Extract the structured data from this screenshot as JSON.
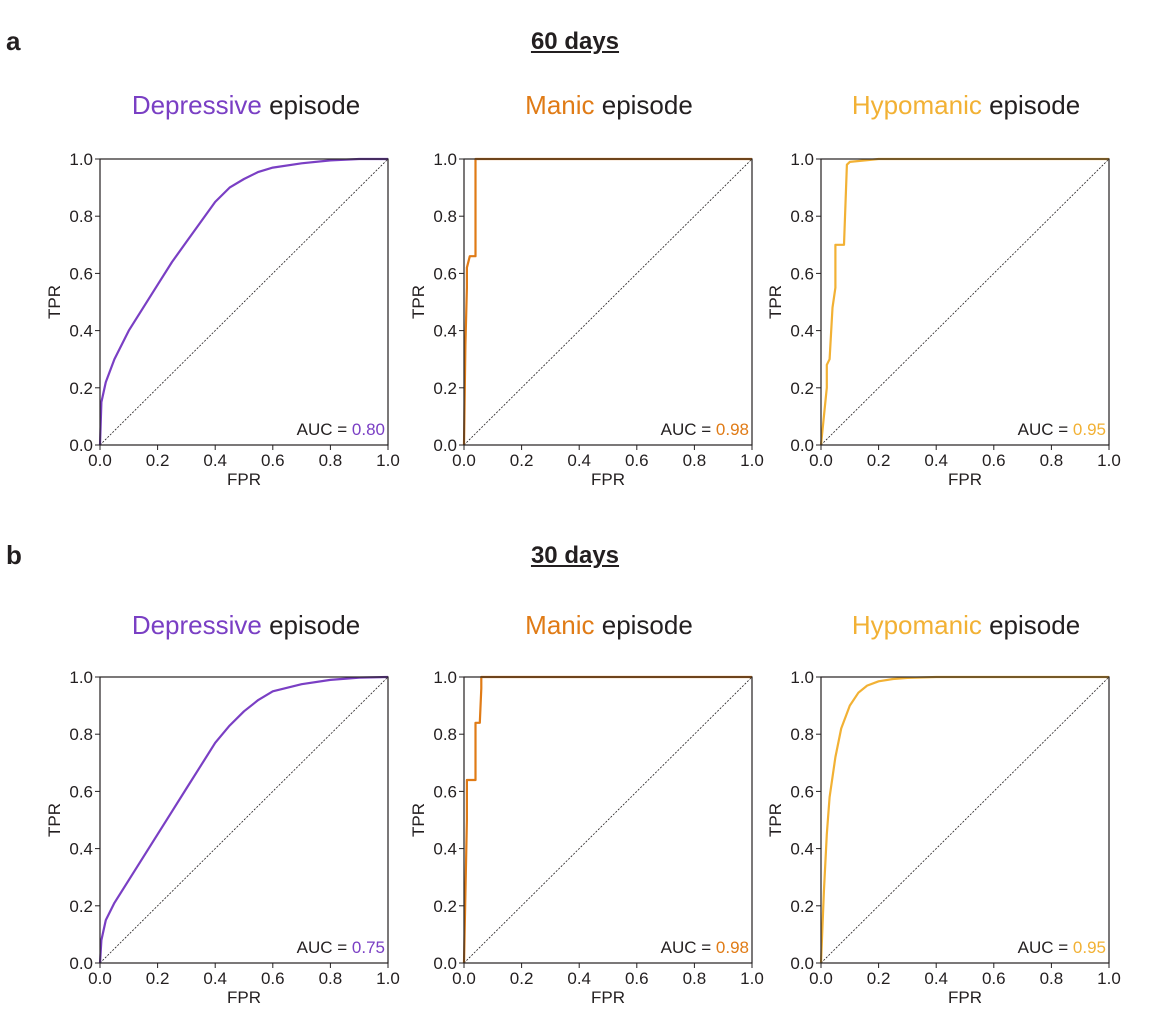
{
  "panels": [
    {
      "letter": "a",
      "title": "60 days"
    },
    {
      "letter": "b",
      "title": "30 days"
    }
  ],
  "colors": {
    "depressive": "#7a3fc4",
    "manic": "#e07b16",
    "hypomanic": "#f2b134",
    "text": "#231f20"
  },
  "chart_data": [
    {
      "type": "line",
      "panel": "a",
      "title_highlight": "Depressive",
      "title_rest": " episode",
      "xlabel": "FPR",
      "ylabel": "TPR",
      "xlim": [
        0,
        1
      ],
      "ylim": [
        0,
        1
      ],
      "xticks": [
        "0.0",
        "0.2",
        "0.4",
        "0.6",
        "0.8",
        "1.0"
      ],
      "yticks": [
        "0.0",
        "0.2",
        "0.4",
        "0.6",
        "0.8",
        "1.0"
      ],
      "auc_label": "AUC = ",
      "auc_value": "0.80",
      "color_key": "depressive",
      "x": [
        0,
        0.005,
        0.02,
        0.05,
        0.1,
        0.15,
        0.2,
        0.25,
        0.3,
        0.35,
        0.4,
        0.45,
        0.5,
        0.55,
        0.6,
        0.7,
        0.8,
        0.9,
        1.0
      ],
      "y": [
        0,
        0.15,
        0.22,
        0.3,
        0.4,
        0.48,
        0.56,
        0.64,
        0.71,
        0.78,
        0.85,
        0.9,
        0.93,
        0.955,
        0.97,
        0.985,
        0.995,
        1.0,
        1.0
      ]
    },
    {
      "type": "line",
      "panel": "a",
      "title_highlight": "Manic",
      "title_rest": " episode",
      "xlabel": "FPR",
      "ylabel": "TPR",
      "xlim": [
        0,
        1
      ],
      "ylim": [
        0,
        1
      ],
      "xticks": [
        "0.0",
        "0.2",
        "0.4",
        "0.6",
        "0.8",
        "1.0"
      ],
      "yticks": [
        "0.0",
        "0.2",
        "0.4",
        "0.6",
        "0.8",
        "1.0"
      ],
      "auc_label": "AUC = ",
      "auc_value": "0.98",
      "color_key": "manic",
      "x": [
        0,
        0.005,
        0.01,
        0.01,
        0.02,
        0.02,
        0.03,
        0.04,
        0.04,
        1.0
      ],
      "y": [
        0,
        0.35,
        0.55,
        0.62,
        0.66,
        0.66,
        0.66,
        0.66,
        1.0,
        1.0
      ]
    },
    {
      "type": "line",
      "panel": "a",
      "title_highlight": "Hypomanic",
      "title_rest": " episode",
      "xlabel": "FPR",
      "ylabel": "TPR",
      "xlim": [
        0,
        1
      ],
      "ylim": [
        0,
        1
      ],
      "xticks": [
        "0.0",
        "0.2",
        "0.4",
        "0.6",
        "0.8",
        "1.0"
      ],
      "yticks": [
        "0.0",
        "0.2",
        "0.4",
        "0.6",
        "0.8",
        "1.0"
      ],
      "auc_label": "AUC = ",
      "auc_value": "0.95",
      "color_key": "hypomanic",
      "x": [
        0,
        0.01,
        0.02,
        0.02,
        0.03,
        0.04,
        0.05,
        0.05,
        0.08,
        0.09,
        0.1,
        0.2,
        1.0
      ],
      "y": [
        0,
        0.1,
        0.2,
        0.28,
        0.3,
        0.48,
        0.55,
        0.7,
        0.7,
        0.98,
        0.99,
        1.0,
        1.0
      ]
    },
    {
      "type": "line",
      "panel": "b",
      "title_highlight": "Depressive",
      "title_rest": " episode",
      "xlabel": "FPR",
      "ylabel": "TPR",
      "xlim": [
        0,
        1
      ],
      "ylim": [
        0,
        1
      ],
      "xticks": [
        "0.0",
        "0.2",
        "0.4",
        "0.6",
        "0.8",
        "1.0"
      ],
      "yticks": [
        "0.0",
        "0.2",
        "0.4",
        "0.6",
        "0.8",
        "1.0"
      ],
      "auc_label": "AUC = ",
      "auc_value": "0.75",
      "color_key": "depressive",
      "x": [
        0,
        0.005,
        0.02,
        0.05,
        0.1,
        0.15,
        0.2,
        0.25,
        0.3,
        0.35,
        0.4,
        0.45,
        0.5,
        0.55,
        0.6,
        0.7,
        0.8,
        0.9,
        1.0
      ],
      "y": [
        0,
        0.08,
        0.15,
        0.21,
        0.29,
        0.37,
        0.45,
        0.53,
        0.61,
        0.69,
        0.77,
        0.83,
        0.88,
        0.92,
        0.95,
        0.975,
        0.99,
        0.998,
        1.0
      ]
    },
    {
      "type": "line",
      "panel": "b",
      "title_highlight": "Manic",
      "title_rest": " episode",
      "xlabel": "FPR",
      "ylabel": "TPR",
      "xlim": [
        0,
        1
      ],
      "ylim": [
        0,
        1
      ],
      "xticks": [
        "0.0",
        "0.2",
        "0.4",
        "0.6",
        "0.8",
        "1.0"
      ],
      "yticks": [
        "0.0",
        "0.2",
        "0.4",
        "0.6",
        "0.8",
        "1.0"
      ],
      "auc_label": "AUC = ",
      "auc_value": "0.98",
      "color_key": "manic",
      "x": [
        0,
        0.01,
        0.01,
        0.02,
        0.04,
        0.04,
        0.05,
        0.055,
        0.06,
        0.06,
        1.0
      ],
      "y": [
        0,
        0.5,
        0.64,
        0.64,
        0.64,
        0.84,
        0.84,
        0.84,
        0.96,
        1.0,
        1.0
      ]
    },
    {
      "type": "line",
      "panel": "b",
      "title_highlight": "Hypomanic",
      "title_rest": " episode",
      "xlabel": "FPR",
      "ylabel": "TPR",
      "xlim": [
        0,
        1
      ],
      "ylim": [
        0,
        1
      ],
      "xticks": [
        "0.0",
        "0.2",
        "0.4",
        "0.6",
        "0.8",
        "1.0"
      ],
      "yticks": [
        "0.0",
        "0.2",
        "0.4",
        "0.6",
        "0.8",
        "1.0"
      ],
      "auc_label": "AUC = ",
      "auc_value": "0.95",
      "color_key": "hypomanic",
      "x": [
        0,
        0.01,
        0.02,
        0.03,
        0.05,
        0.07,
        0.1,
        0.13,
        0.16,
        0.2,
        0.25,
        0.3,
        0.4,
        0.5,
        1.0
      ],
      "y": [
        0,
        0.25,
        0.45,
        0.58,
        0.72,
        0.82,
        0.9,
        0.945,
        0.97,
        0.985,
        0.993,
        0.997,
        1.0,
        1.0,
        1.0
      ]
    }
  ]
}
